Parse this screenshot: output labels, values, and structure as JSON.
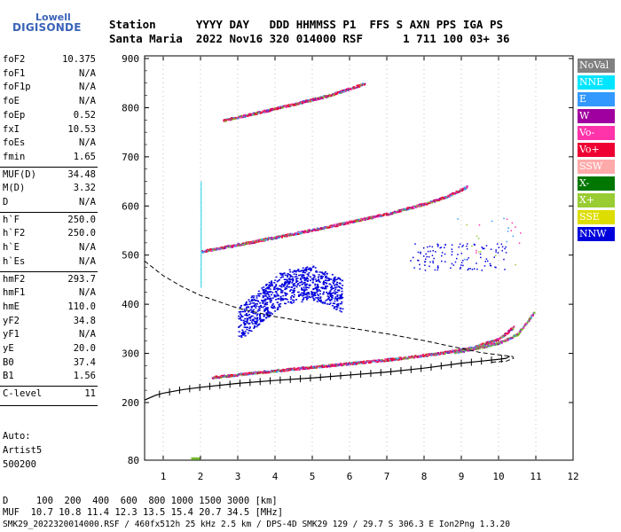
{
  "logo": {
    "line1": "Lowell",
    "line2": "DIGISONDE"
  },
  "header": {
    "row1": "Station      YYYY DAY   DDD HHMMSS P1  FFS S AXN PPS IGA PS",
    "row2": "Santa Maria  2022 Nov16 320 014000 RSF      1 711 100 03+ 36"
  },
  "params": [
    {
      "label": "foF2",
      "value": "10.375"
    },
    {
      "label": "foF1",
      "value": "N/A"
    },
    {
      "label": "foF1p",
      "value": "N/A"
    },
    {
      "label": "foE",
      "value": "N/A"
    },
    {
      "label": "foEp",
      "value": "0.52"
    },
    {
      "label": "fxI",
      "value": "10.53"
    },
    {
      "label": "foEs",
      "value": "N/A"
    },
    {
      "label": "fmin",
      "value": "1.65"
    },
    {
      "label": "MUF(D)",
      "value": "34.48"
    },
    {
      "label": "M(D)",
      "value": "3.32"
    },
    {
      "label": "D",
      "value": "N/A"
    },
    {
      "label": "h`F",
      "value": "250.0"
    },
    {
      "label": "h`F2",
      "value": "250.0"
    },
    {
      "label": "h`E",
      "value": "N/A"
    },
    {
      "label": "h`Es",
      "value": "N/A"
    },
    {
      "label": "hmF2",
      "value": "293.7"
    },
    {
      "label": "hmF1",
      "value": "N/A"
    },
    {
      "label": "hmE",
      "value": "110.0"
    },
    {
      "label": "yF2",
      "value": "34.8"
    },
    {
      "label": "yF1",
      "value": "N/A"
    },
    {
      "label": "yE",
      "value": "20.0"
    },
    {
      "label": "B0",
      "value": "37.4"
    },
    {
      "label": "B1",
      "value": "1.56"
    },
    {
      "label": "C-level",
      "value": "11"
    }
  ],
  "auto": {
    "line1": "Auto:",
    "line2": "Artist5",
    "line3": "500200"
  },
  "legend": [
    {
      "label": "NoVal",
      "color": "#808080"
    },
    {
      "label": "NNE",
      "color": "#00e5ff"
    },
    {
      "label": "E",
      "color": "#3399ff"
    },
    {
      "label": "W",
      "color": "#a000a0"
    },
    {
      "label": "Vo-",
      "color": "#ff33aa"
    },
    {
      "label": "Vo+",
      "color": "#ee0033"
    },
    {
      "label": "SSW",
      "color": "#ffaaaa"
    },
    {
      "label": "X-",
      "color": "#007700"
    },
    {
      "label": "X+",
      "color": "#99cc33"
    },
    {
      "label": "SSE",
      "color": "#dddd00"
    },
    {
      "label": "NNW",
      "color": "#0000dd"
    }
  ],
  "footer": {
    "d_row": "D     100  200  400  600  800 1000 1500 3000 [km]",
    "muf_row": "MUF  10.7 10.8 11.4 12.3 13.5 15.4 20.7 34.5 [MHz]",
    "info": "SMK29_2022320014000.RSF / 460fx512h 25 kHz 2.5 km / DPS-4D SMK29 129 / 29.7 S 306.3 E Ion2Png 1.3.20"
  },
  "chart_data": {
    "type": "scatter",
    "title": "",
    "xlabel": "",
    "ylabel": "",
    "xlim": [
      0.5,
      12
    ],
    "ylim": [
      80,
      905
    ],
    "xticks": [
      1,
      2,
      3,
      4,
      5,
      6,
      7,
      8,
      9,
      10,
      11,
      12
    ],
    "yticks": [
      80,
      200,
      300,
      400,
      500,
      600,
      700,
      800,
      900
    ],
    "traces": [
      {
        "name": "F2 ordinary",
        "color": "#ee0033",
        "x": [
          2.3,
          3.5,
          5.0,
          6.5,
          7.5,
          8.5,
          9.3,
          10.0,
          10.4
        ],
        "y": [
          252,
          262,
          273,
          284,
          292,
          302,
          313,
          330,
          355
        ]
      },
      {
        "name": "F2 extraordinary (lower)",
        "color": "#77bb33",
        "x": [
          8.8,
          9.5,
          10.0,
          10.5,
          10.95
        ],
        "y": [
          303,
          313,
          322,
          340,
          385
        ]
      },
      {
        "name": "2nd hop",
        "color": "#ee0033",
        "x": [
          2.0,
          3.0,
          4.0,
          5.0,
          6.0,
          7.0,
          8.0,
          8.6,
          9.15
        ],
        "y": [
          508,
          522,
          537,
          552,
          568,
          585,
          605,
          620,
          640
        ]
      },
      {
        "name": "3rd hop",
        "color": "#ee0033",
        "x": [
          2.6,
          3.5,
          4.5,
          5.5,
          6.4
        ],
        "y": [
          775,
          790,
          808,
          827,
          850
        ]
      },
      {
        "name": "NNW spread",
        "color": "#0000dd",
        "x": [
          3.0,
          3.4,
          3.8,
          4.2,
          4.6,
          5.0,
          5.4,
          5.8
        ],
        "y": [
          360,
          385,
          410,
          435,
          440,
          445,
          430,
          420
        ]
      },
      {
        "name": "Vo- scatter",
        "color": "#ff33aa",
        "x": [
          9.3,
          10.0,
          10.6
        ],
        "y": [
          520,
          555,
          660
        ]
      }
    ],
    "hF_profile": {
      "x": [
        0.5,
        0.8,
        1.0,
        1.5,
        2.0,
        3.0,
        4.0,
        5.0,
        6.0,
        7.0,
        8.0,
        9.0,
        9.5,
        10.0,
        10.2,
        10.3
      ],
      "y": [
        205,
        215,
        219,
        226,
        231,
        239,
        245,
        250,
        256,
        262,
        270,
        280,
        284,
        288,
        290,
        294
      ]
    },
    "dashed_profile": {
      "x": [
        0.5,
        1.0,
        1.5,
        2.0,
        3.0,
        4.0,
        5.0,
        6.0,
        7.0,
        8.0,
        8.5,
        9.0,
        9.5,
        10.0,
        10.375
      ],
      "y": [
        488,
        458,
        436,
        418,
        392,
        375,
        362,
        352,
        340,
        326,
        318,
        310,
        302,
        297,
        293.7
      ]
    }
  }
}
